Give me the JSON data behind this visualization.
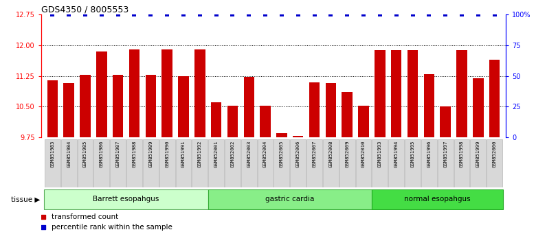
{
  "title": "GDS4350 / 8005553",
  "samples": [
    "GSM851983",
    "GSM851984",
    "GSM851985",
    "GSM851986",
    "GSM851987",
    "GSM851988",
    "GSM851989",
    "GSM851990",
    "GSM851991",
    "GSM851992",
    "GSM852001",
    "GSM852002",
    "GSM852003",
    "GSM852004",
    "GSM852005",
    "GSM852006",
    "GSM852007",
    "GSM852008",
    "GSM852009",
    "GSM852010",
    "GSM851993",
    "GSM851994",
    "GSM851995",
    "GSM851996",
    "GSM851997",
    "GSM851998",
    "GSM851999",
    "GSM852000"
  ],
  "red_values": [
    11.15,
    11.08,
    11.28,
    11.85,
    11.28,
    11.9,
    11.28,
    11.9,
    11.25,
    11.9,
    10.6,
    10.52,
    11.22,
    10.52,
    9.85,
    9.78,
    11.1,
    11.08,
    10.85,
    10.52,
    11.88,
    11.88,
    11.88,
    11.3,
    10.5,
    11.88,
    11.2,
    11.65
  ],
  "blue_values": [
    100,
    100,
    100,
    100,
    100,
    100,
    100,
    100,
    100,
    100,
    100,
    100,
    100,
    100,
    100,
    100,
    100,
    100,
    100,
    100,
    100,
    100,
    100,
    100,
    100,
    100,
    100,
    100
  ],
  "tissue_groups": [
    {
      "label": "Barrett esopahgus",
      "start": 0,
      "end": 10,
      "color": "#ccffcc",
      "border": "#55aa55"
    },
    {
      "label": "gastric cardia",
      "start": 10,
      "end": 20,
      "color": "#88ee88",
      "border": "#33aa33"
    },
    {
      "label": "normal esopahgus",
      "start": 20,
      "end": 28,
      "color": "#44dd44",
      "border": "#22aa22"
    }
  ],
  "ylim_left": [
    9.75,
    12.75
  ],
  "ylim_right": [
    0,
    100
  ],
  "yticks_left": [
    9.75,
    10.5,
    11.25,
    12.0,
    12.75
  ],
  "yticks_right": [
    0,
    25,
    50,
    75,
    100
  ],
  "bar_color": "#cc0000",
  "dot_color": "#0000cc",
  "bg_color": "#ffffff"
}
